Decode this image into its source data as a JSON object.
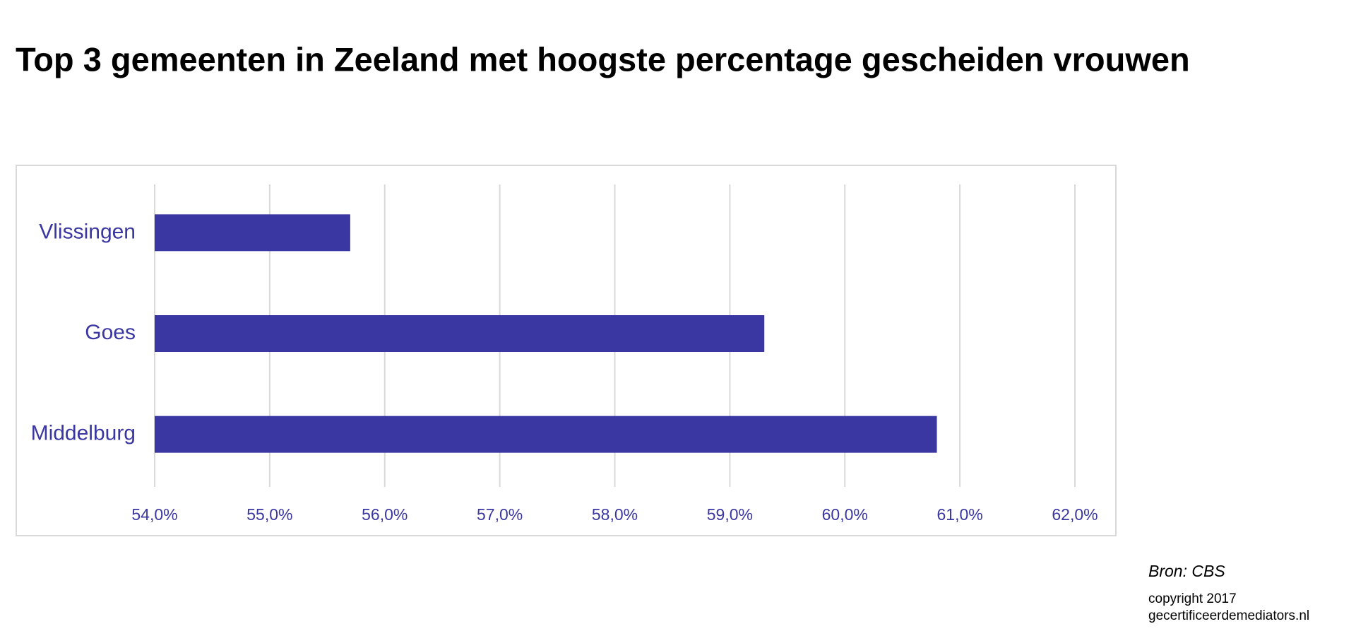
{
  "chart_data": {
    "type": "barh",
    "title": "Top 3 gemeenten in Zeeland met hoogste percentage gescheiden vrouwen",
    "categories": [
      "Vlissingen",
      "Goes",
      "Middelburg"
    ],
    "values": [
      55.7,
      59.3,
      60.8
    ],
    "color": "#3a36a2",
    "xlim": [
      54,
      62
    ],
    "xticks": [
      {
        "value": 54,
        "label": "54,0%"
      },
      {
        "value": 55,
        "label": "55,0%"
      },
      {
        "value": 56,
        "label": "56,0%"
      },
      {
        "value": 57,
        "label": "57,0%"
      },
      {
        "value": 58,
        "label": "58,0%"
      },
      {
        "value": 59,
        "label": "59,0%"
      },
      {
        "value": 60,
        "label": "60,0%"
      },
      {
        "value": 61,
        "label": "61,0%"
      },
      {
        "value": 62,
        "label": "62,0%"
      }
    ],
    "grid": true,
    "source": "Bron: CBS",
    "copyright": "copyright 2017",
    "website": "gecertificeerdemediators.nl"
  }
}
